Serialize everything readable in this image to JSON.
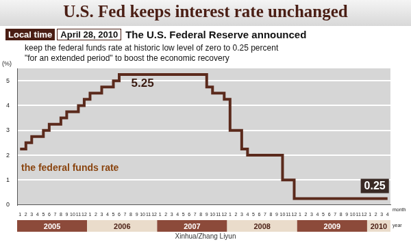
{
  "header": {
    "time_label": "Local time",
    "date": "April 28, 2010",
    "headline": "The U.S. Federal Reserve announced"
  },
  "source": "Xinhua/Zhang Liyun",
  "chart_data": {
    "type": "line",
    "title": "U.S. Fed keeps interest rate unchanged",
    "subtitle": [
      "keep the federal funds rate at historic low level of zero to 0.25 percent",
      "\"for an extended period\" to boost the economic recovery"
    ],
    "y_label": "(%)",
    "x_label": "month",
    "year_label": "year",
    "categories": [
      "1",
      "2",
      "3",
      "4",
      "5",
      "6",
      "7",
      "8",
      "9",
      "10",
      "11",
      "12",
      "1",
      "2",
      "3",
      "4",
      "5",
      "6",
      "7",
      "8",
      "9",
      "10",
      "11",
      "12",
      "1",
      "2",
      "3",
      "4",
      "5",
      "6",
      "7",
      "8",
      "9",
      "10",
      "11",
      "12",
      "1",
      "2",
      "3",
      "4",
      "5",
      "6",
      "7",
      "8",
      "9",
      "10",
      "11",
      "12",
      "1",
      "2",
      "3",
      "4",
      "5",
      "6",
      "7",
      "8",
      "9",
      "10",
      "11",
      "12",
      "1",
      "2",
      "3",
      "4"
    ],
    "years": [
      "2005",
      "2006",
      "2007",
      "2008",
      "2009",
      "2010"
    ],
    "series": [
      {
        "name": "the federal funds rate",
        "color": "#5b2a1c",
        "line_style": "stepped",
        "values": [
          2.25,
          2.5,
          2.75,
          2.75,
          3,
          3.25,
          3.25,
          3.5,
          3.75,
          3.75,
          4,
          4.25,
          4.5,
          4.5,
          4.75,
          4.75,
          5,
          5.25,
          5.25,
          5.25,
          5.25,
          5.25,
          5.25,
          5.25,
          5.25,
          5.25,
          5.25,
          5.25,
          5.25,
          5.25,
          5.25,
          5.25,
          4.75,
          4.5,
          4.5,
          4.25,
          3,
          3,
          2.25,
          2,
          2,
          2,
          2,
          2,
          2,
          1,
          1,
          0.25,
          0.25,
          0.25,
          0.25,
          0.25,
          0.25,
          0.25,
          0.25,
          0.25,
          0.25,
          0.25,
          0.25,
          0.25,
          0.25,
          0.25,
          0.25,
          0.25
        ]
      }
    ],
    "annotations": [
      {
        "text": "5.25",
        "value": 5.25
      },
      {
        "text": "0.25",
        "value": 0.25
      }
    ],
    "ylim": [
      0,
      5.5
    ],
    "yticks": [
      0,
      1,
      2,
      3,
      4,
      5
    ],
    "grid": true
  }
}
